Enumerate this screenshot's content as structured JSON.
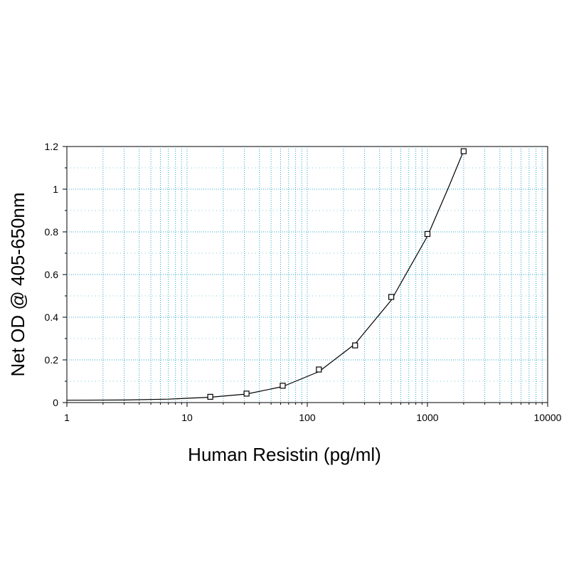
{
  "chart_data": {
    "type": "scatter",
    "title": "",
    "xlabel": "Human Resistin (pg/ml)",
    "ylabel": "Net OD @ 405-650nm",
    "x_scale": "log",
    "xlim": [
      1,
      10000
    ],
    "ylim": [
      0,
      1.2
    ],
    "x_ticks": [
      "1",
      "10",
      "100",
      "1000",
      "10000"
    ],
    "y_ticks": [
      "0",
      "0.2",
      "0.4",
      "0.6",
      "0.8",
      "1",
      "1.2"
    ],
    "grid": true,
    "legend": "none",
    "series": [
      {
        "markers": "open-square",
        "x": [
          15.6,
          31.25,
          62.5,
          125,
          250,
          500,
          1000,
          2000
        ],
        "y": [
          0.027,
          0.042,
          0.079,
          0.155,
          0.268,
          0.495,
          0.79,
          1.178
        ]
      }
    ],
    "fit_curve": {
      "x": [
        1,
        3,
        7,
        15.6,
        31.25,
        62.5,
        125,
        250,
        500,
        1000,
        1500,
        2000
      ],
      "y": [
        0.011,
        0.012,
        0.016,
        0.025,
        0.04,
        0.075,
        0.145,
        0.275,
        0.48,
        0.78,
        1.01,
        1.18
      ]
    },
    "colors": {
      "grid": "#2aa3c9",
      "frame": "#000000",
      "curve": "#000000",
      "marker": "#000000"
    }
  }
}
